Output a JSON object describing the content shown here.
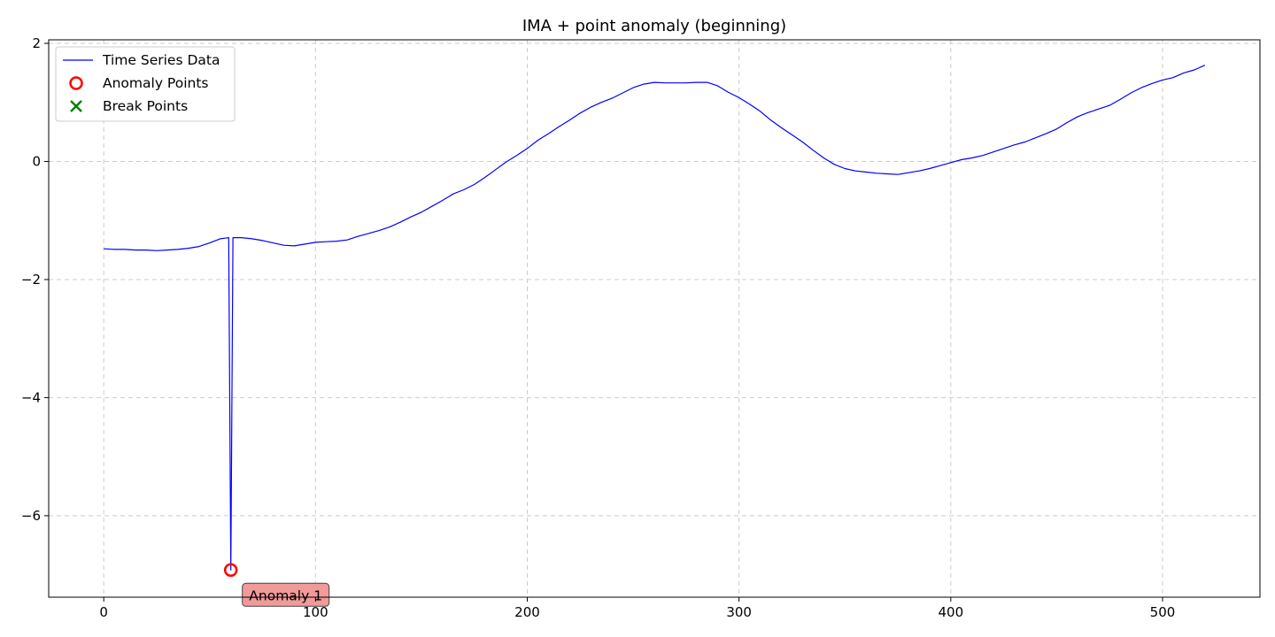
{
  "chart_data": {
    "type": "line",
    "title": "IMA + point anomaly (beginning)",
    "xlabel": "",
    "ylabel": "",
    "xlim": [
      -26,
      546
    ],
    "ylim": [
      -7.38,
      2.06
    ],
    "grid": true,
    "legend_position": "top-left",
    "x_ticks": [
      0,
      100,
      200,
      300,
      400,
      500
    ],
    "x_tick_labels": [
      "0",
      "100",
      "200",
      "300",
      "400",
      "500"
    ],
    "y_ticks": [
      2,
      0,
      -2,
      -4,
      -6
    ],
    "y_tick_labels": [
      "2",
      "0",
      "−2",
      "−4",
      "−6"
    ],
    "legend": [
      {
        "label": "Time Series Data",
        "marker": "line",
        "color": "#0000ff"
      },
      {
        "label": "Anomaly Points",
        "marker": "open-circle",
        "color": "#ff0000"
      },
      {
        "label": "Break Points",
        "marker": "x",
        "color": "#008000"
      }
    ],
    "series": [
      {
        "name": "Time Series Data",
        "color": "#0000ff",
        "points": [
          [
            0,
            -1.48
          ],
          [
            5,
            -1.49
          ],
          [
            10,
            -1.49
          ],
          [
            15,
            -1.5
          ],
          [
            20,
            -1.5
          ],
          [
            25,
            -1.51
          ],
          [
            30,
            -1.5
          ],
          [
            35,
            -1.49
          ],
          [
            40,
            -1.47
          ],
          [
            45,
            -1.44
          ],
          [
            50,
            -1.38
          ],
          [
            55,
            -1.31
          ],
          [
            59,
            -1.29
          ],
          [
            60,
            -6.92
          ],
          [
            61,
            -1.29
          ],
          [
            65,
            -1.29
          ],
          [
            70,
            -1.31
          ],
          [
            75,
            -1.34
          ],
          [
            80,
            -1.38
          ],
          [
            85,
            -1.42
          ],
          [
            90,
            -1.43
          ],
          [
            95,
            -1.4
          ],
          [
            100,
            -1.37
          ],
          [
            105,
            -1.36
          ],
          [
            110,
            -1.35
          ],
          [
            115,
            -1.33
          ],
          [
            120,
            -1.27
          ],
          [
            125,
            -1.22
          ],
          [
            130,
            -1.17
          ],
          [
            135,
            -1.11
          ],
          [
            140,
            -1.03
          ],
          [
            145,
            -0.94
          ],
          [
            150,
            -0.86
          ],
          [
            155,
            -0.76
          ],
          [
            160,
            -0.66
          ],
          [
            165,
            -0.55
          ],
          [
            170,
            -0.48
          ],
          [
            175,
            -0.39
          ],
          [
            180,
            -0.27
          ],
          [
            185,
            -0.14
          ],
          [
            190,
            -0.01
          ],
          [
            195,
            0.1
          ],
          [
            200,
            0.22
          ],
          [
            205,
            0.36
          ],
          [
            210,
            0.47
          ],
          [
            215,
            0.59
          ],
          [
            220,
            0.7
          ],
          [
            225,
            0.82
          ],
          [
            230,
            0.92
          ],
          [
            235,
            1.0
          ],
          [
            240,
            1.07
          ],
          [
            245,
            1.16
          ],
          [
            250,
            1.25
          ],
          [
            255,
            1.31
          ],
          [
            260,
            1.34
          ],
          [
            265,
            1.33
          ],
          [
            270,
            1.33
          ],
          [
            275,
            1.33
          ],
          [
            280,
            1.34
          ],
          [
            285,
            1.34
          ],
          [
            290,
            1.28
          ],
          [
            295,
            1.17
          ],
          [
            300,
            1.08
          ],
          [
            305,
            0.97
          ],
          [
            310,
            0.85
          ],
          [
            315,
            0.7
          ],
          [
            320,
            0.57
          ],
          [
            325,
            0.45
          ],
          [
            330,
            0.33
          ],
          [
            335,
            0.19
          ],
          [
            340,
            0.06
          ],
          [
            345,
            -0.05
          ],
          [
            350,
            -0.12
          ],
          [
            355,
            -0.16
          ],
          [
            360,
            -0.18
          ],
          [
            365,
            -0.2
          ],
          [
            370,
            -0.21
          ],
          [
            375,
            -0.22
          ],
          [
            380,
            -0.19
          ],
          [
            385,
            -0.16
          ],
          [
            390,
            -0.12
          ],
          [
            395,
            -0.07
          ],
          [
            400,
            -0.02
          ],
          [
            405,
            0.03
          ],
          [
            410,
            0.06
          ],
          [
            415,
            0.1
          ],
          [
            420,
            0.16
          ],
          [
            425,
            0.22
          ],
          [
            430,
            0.28
          ],
          [
            435,
            0.33
          ],
          [
            440,
            0.4
          ],
          [
            445,
            0.47
          ],
          [
            450,
            0.55
          ],
          [
            455,
            0.66
          ],
          [
            460,
            0.76
          ],
          [
            465,
            0.83
          ],
          [
            470,
            0.89
          ],
          [
            475,
            0.95
          ],
          [
            480,
            1.05
          ],
          [
            485,
            1.16
          ],
          [
            490,
            1.25
          ],
          [
            495,
            1.32
          ],
          [
            500,
            1.38
          ],
          [
            505,
            1.42
          ],
          [
            510,
            1.5
          ],
          [
            515,
            1.55
          ],
          [
            520,
            1.63
          ]
        ]
      }
    ],
    "anomaly_points": [
      {
        "x": 60,
        "y": -6.92,
        "label": "Anomaly 1"
      }
    ],
    "break_points": []
  }
}
